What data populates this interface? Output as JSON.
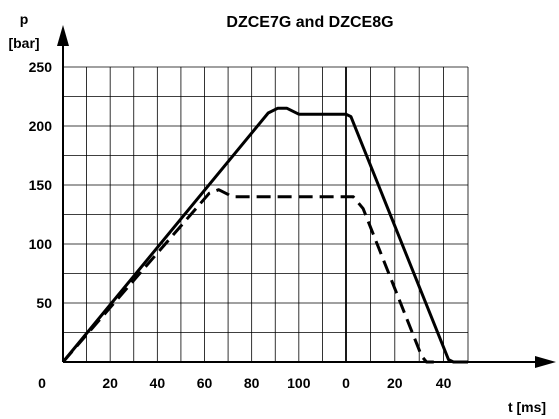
{
  "chart_data": {
    "type": "line",
    "title": "DZCE7G and DZCE8G",
    "ylabel_line1": "p",
    "ylabel_line2": "[bar]",
    "xlabel": "t [ms]",
    "ylim": [
      0,
      250
    ],
    "y_ticks": [
      "0",
      "50",
      "100",
      "150",
      "200",
      "250"
    ],
    "x_ticks_phase1": [
      "20",
      "40",
      "60",
      "80",
      "100"
    ],
    "x_ticks_phase2": [
      "0",
      "20",
      "40"
    ],
    "x_phase1_range": [
      0,
      120
    ],
    "x_phase2_range": [
      0,
      50
    ],
    "grid": true,
    "series": [
      {
        "style": "solid",
        "points": [
          {
            "phase": 1,
            "x": 0,
            "y": 0
          },
          {
            "phase": 1,
            "x": 87,
            "y": 211
          },
          {
            "phase": 1,
            "x": 91,
            "y": 215
          },
          {
            "phase": 1,
            "x": 95,
            "y": 215
          },
          {
            "phase": 1,
            "x": 100,
            "y": 210
          },
          {
            "phase": 1,
            "x": 117,
            "y": 210
          },
          {
            "phase": 2,
            "x": 0,
            "y": 210
          },
          {
            "phase": 2,
            "x": 2,
            "y": 208
          },
          {
            "phase": 2,
            "x": 42,
            "y": 2
          },
          {
            "phase": 2,
            "x": 44,
            "y": 0
          },
          {
            "phase": 2,
            "x": 50,
            "y": 0
          }
        ]
      },
      {
        "style": "dashed",
        "points": [
          {
            "phase": 1,
            "x": 0,
            "y": 0
          },
          {
            "phase": 1,
            "x": 62,
            "y": 143
          },
          {
            "phase": 1,
            "x": 66,
            "y": 146
          },
          {
            "phase": 1,
            "x": 72,
            "y": 140
          },
          {
            "phase": 1,
            "x": 115,
            "y": 140
          },
          {
            "phase": 2,
            "x": 3,
            "y": 140
          },
          {
            "phase": 2,
            "x": 7,
            "y": 130
          },
          {
            "phase": 2,
            "x": 31,
            "y": 5
          },
          {
            "phase": 2,
            "x": 33,
            "y": 0
          },
          {
            "phase": 2,
            "x": 36,
            "y": 0
          }
        ]
      }
    ]
  }
}
